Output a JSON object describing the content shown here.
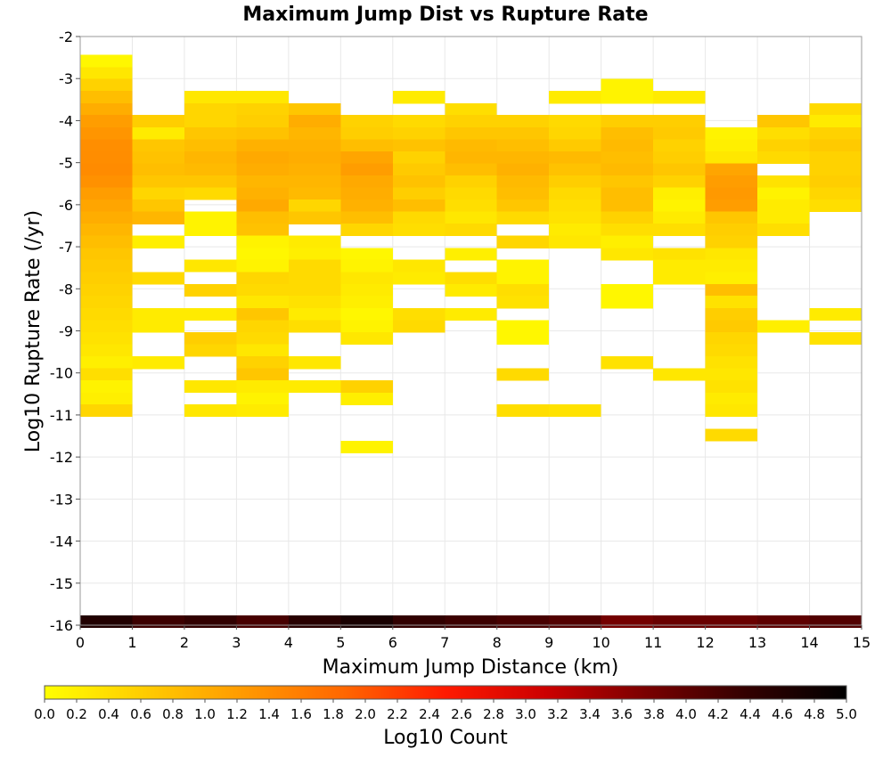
{
  "chart_data": {
    "type": "heatmap",
    "title": "Maximum Jump Dist vs Rupture Rate",
    "xlabel": "Maximum Jump Distance (km)",
    "ylabel": "Log10 Rupture Rate (/yr)",
    "xlim": [
      0,
      15
    ],
    "ylim": [
      -16,
      -2
    ],
    "x_ticks": [
      "0",
      "1",
      "2",
      "3",
      "4",
      "5",
      "6",
      "7",
      "8",
      "9",
      "10",
      "11",
      "12",
      "13",
      "14",
      "15"
    ],
    "y_ticks": [
      "-16",
      "-15",
      "-14",
      "-13",
      "-12",
      "-11",
      "-10",
      "-9",
      "-8",
      "-7",
      "-6",
      "-5",
      "-4",
      "-3",
      "-2"
    ],
    "grid": true,
    "bin_x_width": 1,
    "bin_y_height": 0.286,
    "colorbar": {
      "label": "Log10 Count",
      "range": [
        0.0,
        5.0
      ],
      "ticks": [
        "0.0",
        "0.2",
        "0.4",
        "0.6",
        "0.8",
        "1.0",
        "1.2",
        "1.4",
        "1.6",
        "1.8",
        "2.0",
        "2.2",
        "2.4",
        "2.6",
        "2.8",
        "3.0",
        "3.2",
        "3.4",
        "3.6",
        "3.8",
        "4.0",
        "4.2",
        "4.4",
        "4.6",
        "4.8",
        "5.0"
      ],
      "colors": [
        "#ffff00",
        "#ffcc00",
        "#ff9900",
        "#ff6600",
        "#ff1a00",
        "#cc0000",
        "#7a0000",
        "#330000",
        "#000000"
      ]
    },
    "columns": [
      {
        "x": 0,
        "cells": [
          [
            -2.58,
            0.1
          ],
          [
            -2.87,
            0.3
          ],
          [
            -3.15,
            0.55
          ],
          [
            -3.44,
            0.8
          ],
          [
            -3.73,
            1.0
          ],
          [
            -4.01,
            1.2
          ],
          [
            -4.3,
            1.3
          ],
          [
            -4.59,
            1.38
          ],
          [
            -4.87,
            1.4
          ],
          [
            -5.16,
            1.42
          ],
          [
            -5.45,
            1.35
          ],
          [
            -5.73,
            1.2
          ],
          [
            -6.02,
            1.1
          ],
          [
            -6.31,
            1.0
          ],
          [
            -6.59,
            0.9
          ],
          [
            -6.88,
            0.8
          ],
          [
            -7.17,
            0.7
          ],
          [
            -7.45,
            0.65
          ],
          [
            -7.74,
            0.6
          ],
          [
            -8.03,
            0.55
          ],
          [
            -8.31,
            0.5
          ],
          [
            -8.6,
            0.45
          ],
          [
            -8.89,
            0.4
          ],
          [
            -9.17,
            0.35
          ],
          [
            -9.46,
            0.3
          ],
          [
            -9.75,
            0.2
          ],
          [
            -10.03,
            0.4
          ],
          [
            -10.32,
            0.15
          ],
          [
            -10.61,
            0.2
          ],
          [
            -10.89,
            0.5
          ],
          [
            -15.91,
            4.6
          ]
        ]
      },
      {
        "x": 1,
        "cells": [
          [
            -4.01,
            0.6
          ],
          [
            -4.3,
            0.25
          ],
          [
            -4.59,
            0.7
          ],
          [
            -4.87,
            0.75
          ],
          [
            -5.16,
            0.8
          ],
          [
            -5.45,
            0.7
          ],
          [
            -5.73,
            0.5
          ],
          [
            -6.02,
            0.7
          ],
          [
            -6.31,
            0.9
          ],
          [
            -6.88,
            0.2
          ],
          [
            -7.74,
            0.45
          ],
          [
            -8.6,
            0.25
          ],
          [
            -8.89,
            0.25
          ],
          [
            -9.75,
            0.25
          ],
          [
            -15.91,
            4.3
          ]
        ]
      },
      {
        "x": 2,
        "cells": [
          [
            -3.44,
            0.3
          ],
          [
            -3.73,
            0.5
          ],
          [
            -4.01,
            0.5
          ],
          [
            -4.3,
            0.7
          ],
          [
            -4.59,
            0.8
          ],
          [
            -4.87,
            0.9
          ],
          [
            -5.16,
            0.85
          ],
          [
            -5.45,
            0.7
          ],
          [
            -5.73,
            0.45
          ],
          [
            -6.31,
            0.15
          ],
          [
            -6.59,
            0.15
          ],
          [
            -7.45,
            0.3
          ],
          [
            -8.03,
            0.55
          ],
          [
            -8.6,
            0.25
          ],
          [
            -9.17,
            0.6
          ],
          [
            -9.46,
            0.5
          ],
          [
            -10.32,
            0.3
          ],
          [
            -10.89,
            0.3
          ],
          [
            -15.91,
            4.4
          ]
        ]
      },
      {
        "x": 3,
        "cells": [
          [
            -3.44,
            0.3
          ],
          [
            -3.73,
            0.55
          ],
          [
            -4.01,
            0.6
          ],
          [
            -4.3,
            0.75
          ],
          [
            -4.59,
            0.95
          ],
          [
            -4.87,
            1.05
          ],
          [
            -5.16,
            1.0
          ],
          [
            -5.45,
            0.9
          ],
          [
            -5.73,
            0.95
          ],
          [
            -6.02,
            1.05
          ],
          [
            -6.31,
            0.8
          ],
          [
            -6.59,
            0.75
          ],
          [
            -6.88,
            0.15
          ],
          [
            -7.17,
            0.1
          ],
          [
            -7.45,
            0.15
          ],
          [
            -7.74,
            0.5
          ],
          [
            -8.03,
            0.45
          ],
          [
            -8.31,
            0.3
          ],
          [
            -8.6,
            0.7
          ],
          [
            -8.89,
            0.5
          ],
          [
            -9.17,
            0.45
          ],
          [
            -9.46,
            0.3
          ],
          [
            -9.75,
            0.55
          ],
          [
            -10.03,
            0.7
          ],
          [
            -10.32,
            0.25
          ],
          [
            -10.61,
            0.15
          ],
          [
            -10.89,
            0.25
          ],
          [
            -15.91,
            4.2
          ]
        ]
      },
      {
        "x": 4,
        "cells": [
          [
            -3.73,
            0.7
          ],
          [
            -4.01,
            1.0
          ],
          [
            -4.3,
            0.9
          ],
          [
            -4.59,
            0.95
          ],
          [
            -4.87,
            1.0
          ],
          [
            -5.16,
            0.95
          ],
          [
            -5.45,
            0.9
          ],
          [
            -5.73,
            0.85
          ],
          [
            -6.02,
            0.5
          ],
          [
            -6.31,
            0.7
          ],
          [
            -6.88,
            0.25
          ],
          [
            -7.17,
            0.2
          ],
          [
            -7.45,
            0.45
          ],
          [
            -7.74,
            0.45
          ],
          [
            -8.03,
            0.45
          ],
          [
            -8.31,
            0.35
          ],
          [
            -8.6,
            0.25
          ],
          [
            -8.89,
            0.4
          ],
          [
            -9.75,
            0.3
          ],
          [
            -10.32,
            0.25
          ],
          [
            -15.91,
            4.5
          ]
        ]
      },
      {
        "x": 5,
        "cells": [
          [
            -4.01,
            0.55
          ],
          [
            -4.3,
            0.6
          ],
          [
            -4.59,
            0.8
          ],
          [
            -4.87,
            1.1
          ],
          [
            -5.16,
            1.2
          ],
          [
            -5.45,
            1.05
          ],
          [
            -5.73,
            1.0
          ],
          [
            -6.02,
            0.95
          ],
          [
            -6.31,
            0.8
          ],
          [
            -6.59,
            0.5
          ],
          [
            -7.17,
            0.1
          ],
          [
            -7.45,
            0.15
          ],
          [
            -7.74,
            0.3
          ],
          [
            -8.03,
            0.25
          ],
          [
            -8.31,
            0.2
          ],
          [
            -8.6,
            0.1
          ],
          [
            -8.89,
            0.15
          ],
          [
            -9.17,
            0.3
          ],
          [
            -10.32,
            0.55
          ],
          [
            -10.61,
            0.2
          ],
          [
            -11.76,
            0.15
          ],
          [
            -15.91,
            4.7
          ]
        ]
      },
      {
        "x": 6,
        "cells": [
          [
            -3.44,
            0.25
          ],
          [
            -4.01,
            0.45
          ],
          [
            -4.3,
            0.55
          ],
          [
            -4.59,
            0.75
          ],
          [
            -4.87,
            0.55
          ],
          [
            -5.16,
            0.65
          ],
          [
            -5.45,
            0.75
          ],
          [
            -5.73,
            0.6
          ],
          [
            -6.02,
            0.8
          ],
          [
            -6.31,
            0.45
          ],
          [
            -6.59,
            0.4
          ],
          [
            -7.45,
            0.3
          ],
          [
            -7.74,
            0.25
          ],
          [
            -8.6,
            0.4
          ],
          [
            -8.89,
            0.45
          ],
          [
            -15.91,
            4.4
          ]
        ]
      },
      {
        "x": 7,
        "cells": [
          [
            -3.73,
            0.4
          ],
          [
            -4.01,
            0.55
          ],
          [
            -4.3,
            0.7
          ],
          [
            -4.59,
            0.85
          ],
          [
            -4.87,
            0.9
          ],
          [
            -5.16,
            0.8
          ],
          [
            -5.45,
            0.55
          ],
          [
            -5.73,
            0.45
          ],
          [
            -6.02,
            0.4
          ],
          [
            -6.31,
            0.3
          ],
          [
            -6.59,
            0.45
          ],
          [
            -7.17,
            0.2
          ],
          [
            -7.74,
            0.4
          ],
          [
            -8.03,
            0.25
          ],
          [
            -8.6,
            0.25
          ],
          [
            -15.91,
            4.3
          ]
        ]
      },
      {
        "x": 8,
        "cells": [
          [
            -4.01,
            0.55
          ],
          [
            -4.3,
            0.7
          ],
          [
            -4.59,
            0.8
          ],
          [
            -4.87,
            0.9
          ],
          [
            -5.16,
            0.95
          ],
          [
            -5.45,
            0.85
          ],
          [
            -5.73,
            0.8
          ],
          [
            -6.02,
            0.7
          ],
          [
            -6.31,
            0.45
          ],
          [
            -6.88,
            0.5
          ],
          [
            -7.45,
            0.15
          ],
          [
            -7.74,
            0.15
          ],
          [
            -8.03,
            0.4
          ],
          [
            -8.31,
            0.35
          ],
          [
            -8.89,
            0.1
          ],
          [
            -9.17,
            0.1
          ],
          [
            -10.03,
            0.45
          ],
          [
            -10.89,
            0.4
          ],
          [
            -15.91,
            4.2
          ]
        ]
      },
      {
        "x": 9,
        "cells": [
          [
            -3.44,
            0.25
          ],
          [
            -4.01,
            0.45
          ],
          [
            -4.3,
            0.5
          ],
          [
            -4.59,
            0.65
          ],
          [
            -4.87,
            0.85
          ],
          [
            -5.16,
            0.75
          ],
          [
            -5.45,
            0.6
          ],
          [
            -5.73,
            0.45
          ],
          [
            -6.02,
            0.4
          ],
          [
            -6.31,
            0.35
          ],
          [
            -6.59,
            0.25
          ],
          [
            -6.88,
            0.3
          ],
          [
            -10.89,
            0.35
          ],
          [
            -15.91,
            4.1
          ]
        ]
      },
      {
        "x": 10,
        "cells": [
          [
            -3.15,
            0.15
          ],
          [
            -3.44,
            0.15
          ],
          [
            -4.01,
            0.6
          ],
          [
            -4.3,
            0.8
          ],
          [
            -4.59,
            0.85
          ],
          [
            -4.87,
            0.8
          ],
          [
            -5.16,
            0.85
          ],
          [
            -5.45,
            0.7
          ],
          [
            -5.73,
            0.8
          ],
          [
            -6.02,
            0.8
          ],
          [
            -6.31,
            0.55
          ],
          [
            -6.59,
            0.4
          ],
          [
            -6.88,
            0.2
          ],
          [
            -7.17,
            0.3
          ],
          [
            -8.03,
            0.1
          ],
          [
            -8.31,
            0.1
          ],
          [
            -9.75,
            0.35
          ],
          [
            -15.91,
            3.8
          ]
        ]
      },
      {
        "x": 11,
        "cells": [
          [
            -3.44,
            0.25
          ],
          [
            -4.01,
            0.6
          ],
          [
            -4.3,
            0.65
          ],
          [
            -4.59,
            0.55
          ],
          [
            -4.87,
            0.6
          ],
          [
            -5.16,
            0.7
          ],
          [
            -5.45,
            0.55
          ],
          [
            -5.73,
            0.2
          ],
          [
            -6.02,
            0.15
          ],
          [
            -6.31,
            0.25
          ],
          [
            -6.59,
            0.4
          ],
          [
            -7.17,
            0.35
          ],
          [
            -7.45,
            0.25
          ],
          [
            -7.74,
            0.25
          ],
          [
            -10.03,
            0.3
          ],
          [
            -15.91,
            3.9
          ]
        ]
      },
      {
        "x": 12,
        "cells": [
          [
            -4.3,
            0.15
          ],
          [
            -4.59,
            0.2
          ],
          [
            -4.87,
            0.3
          ],
          [
            -5.16,
            1.1
          ],
          [
            -5.45,
            1.2
          ],
          [
            -5.73,
            1.25
          ],
          [
            -6.02,
            1.2
          ],
          [
            -6.31,
            0.7
          ],
          [
            -6.59,
            0.6
          ],
          [
            -6.88,
            0.55
          ],
          [
            -7.17,
            0.3
          ],
          [
            -7.45,
            0.25
          ],
          [
            -7.74,
            0.2
          ],
          [
            -8.03,
            0.8
          ],
          [
            -8.31,
            0.35
          ],
          [
            -8.6,
            0.6
          ],
          [
            -8.89,
            0.65
          ],
          [
            -9.17,
            0.5
          ],
          [
            -9.46,
            0.45
          ],
          [
            -9.75,
            0.35
          ],
          [
            -10.03,
            0.3
          ],
          [
            -10.32,
            0.35
          ],
          [
            -10.61,
            0.25
          ],
          [
            -10.89,
            0.3
          ],
          [
            -11.47,
            0.45
          ],
          [
            -15.91,
            3.9
          ]
        ]
      },
      {
        "x": 13,
        "cells": [
          [
            -4.01,
            0.7
          ],
          [
            -4.3,
            0.4
          ],
          [
            -4.59,
            0.55
          ],
          [
            -4.87,
            0.45
          ],
          [
            -5.45,
            0.35
          ],
          [
            -5.73,
            0.15
          ],
          [
            -6.02,
            0.25
          ],
          [
            -6.31,
            0.25
          ],
          [
            -6.59,
            0.4
          ],
          [
            -8.89,
            0.2
          ],
          [
            -15.91,
            4.0
          ]
        ]
      },
      {
        "x": 14,
        "cells": [
          [
            -3.73,
            0.45
          ],
          [
            -4.01,
            0.25
          ],
          [
            -4.3,
            0.55
          ],
          [
            -4.59,
            0.65
          ],
          [
            -4.87,
            0.55
          ],
          [
            -5.16,
            0.55
          ],
          [
            -5.45,
            0.6
          ],
          [
            -5.73,
            0.5
          ],
          [
            -6.02,
            0.4
          ],
          [
            -8.6,
            0.25
          ],
          [
            -9.17,
            0.35
          ],
          [
            -15.91,
            4.1
          ]
        ]
      }
    ]
  }
}
